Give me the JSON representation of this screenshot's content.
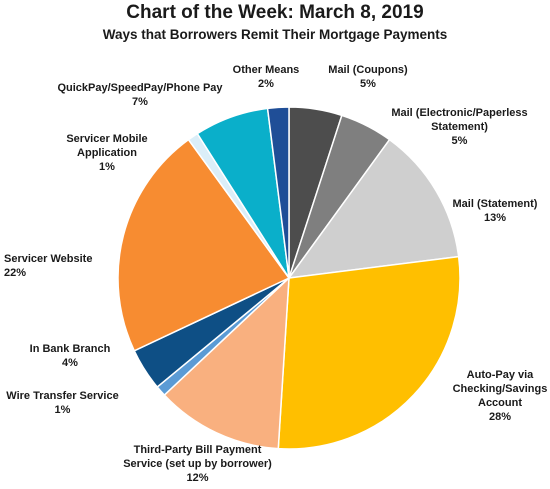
{
  "chart_data": {
    "type": "pie",
    "title": "Chart of the Week:  March 8, 2019",
    "subtitle": "Ways that Borrowers Remit Their Mortgage Payments",
    "slices": [
      {
        "label": "Mail (Coupons)",
        "value": 5,
        "pct_label": "5%",
        "color": "#4d4d4d"
      },
      {
        "label": "Mail (Electronic/Paperless Statement)",
        "value": 5,
        "pct_label": "5%",
        "color": "#7f7f7f"
      },
      {
        "label": "Mail (Statement)",
        "value": 13,
        "pct_label": "13%",
        "color": "#cfcfcf"
      },
      {
        "label": "Auto-Pay via Checking/Savings Account",
        "value": 28,
        "pct_label": "28%",
        "color": "#ffbf00"
      },
      {
        "label": "Third-Party Bill Payment Service (set up by borrower)",
        "value": 12,
        "pct_label": "12%",
        "color": "#f9b07f"
      },
      {
        "label": "Wire Transfer Service",
        "value": 1,
        "pct_label": "1%",
        "color": "#5b9bd5"
      },
      {
        "label": "In Bank Branch",
        "value": 4,
        "pct_label": "4%",
        "color": "#0e4f85"
      },
      {
        "label": "Servicer Website",
        "value": 22,
        "pct_label": "22%",
        "color": "#f78c31"
      },
      {
        "label": "Servicer Mobile Application",
        "value": 1,
        "pct_label": "1%",
        "color": "#dbeef8"
      },
      {
        "label": "QuickPay/SpeedPay/Phone  Pay",
        "value": 7,
        "pct_label": "7%",
        "color": "#0aafca"
      },
      {
        "label": "Other Means",
        "value": 2,
        "pct_label": "2%",
        "color": "#1f4e97"
      }
    ]
  }
}
